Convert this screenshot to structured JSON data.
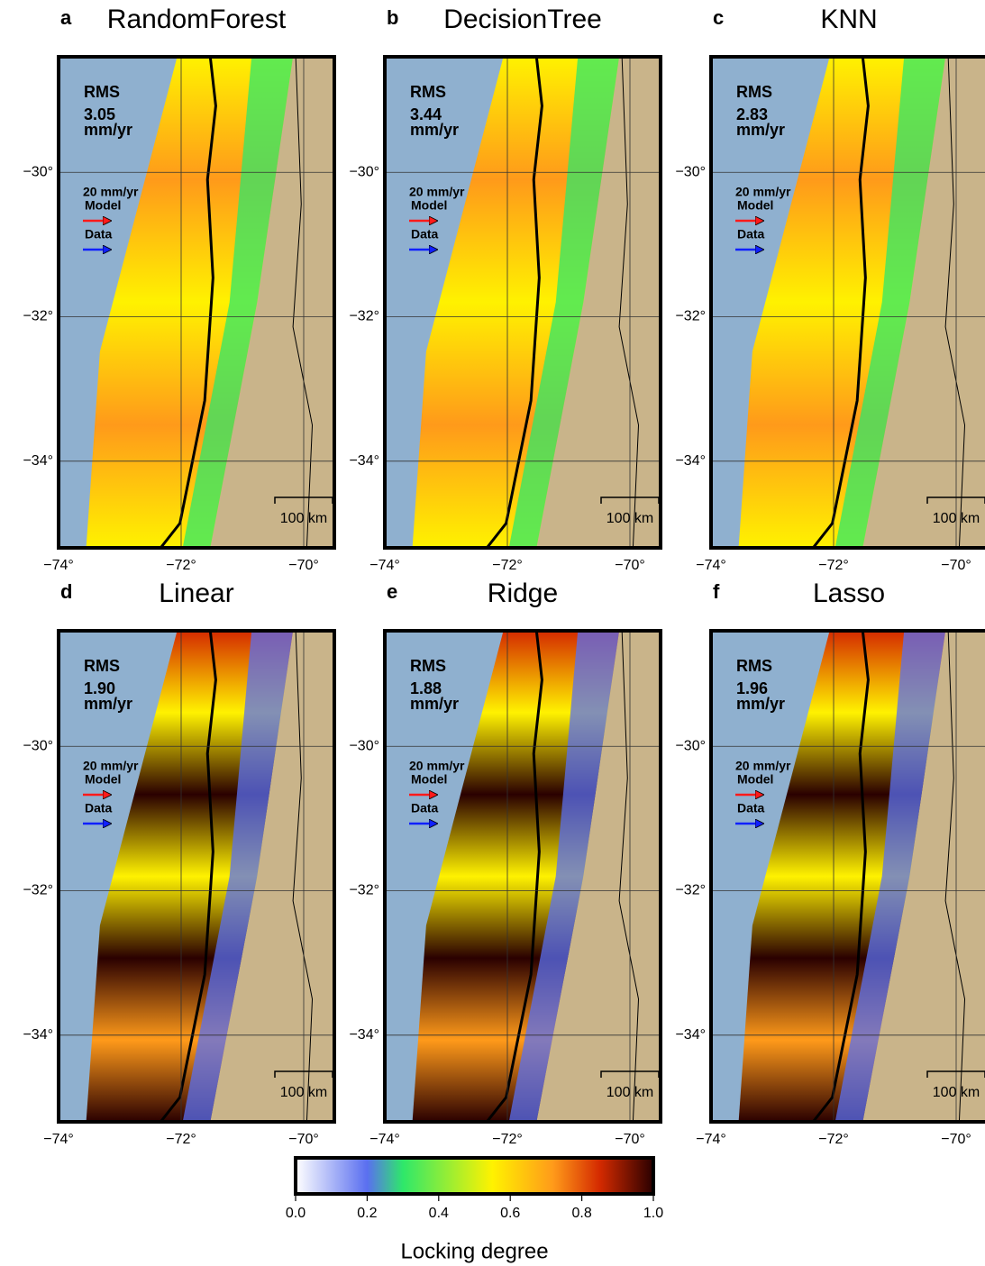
{
  "chart_data": [
    {
      "type": "map",
      "letter": "a",
      "title": "RandomForest",
      "rms_label": "RMS",
      "rms": 3.05,
      "rms_unit": "mm/yr",
      "legend_scale": "20 mm/yr",
      "legend_model": "Model",
      "legend_data": "Data",
      "scalebar": "100 km",
      "xlim": [
        -74,
        -69.5
      ],
      "ylim": [
        -35.2,
        -28.4
      ],
      "xticks": [
        {
          "value": -74,
          "label": "−74°"
        },
        {
          "value": -72,
          "label": "−72°"
        },
        {
          "value": -70,
          "label": "−70°"
        }
      ],
      "yticks": [
        {
          "value": -30,
          "label": "−30°"
        },
        {
          "value": -32,
          "label": "−32°"
        },
        {
          "value": -34,
          "label": "−34°"
        }
      ]
    },
    {
      "type": "map",
      "letter": "b",
      "title": "DecisionTree",
      "rms_label": "RMS",
      "rms": 3.44,
      "rms_unit": "mm/yr",
      "legend_scale": "20 mm/yr",
      "legend_model": "Model",
      "legend_data": "Data",
      "scalebar": "100 km",
      "xlim": [
        -74,
        -69.5
      ],
      "ylim": [
        -35.2,
        -28.4
      ],
      "xticks": [
        {
          "value": -74,
          "label": "−74°"
        },
        {
          "value": -72,
          "label": "−72°"
        },
        {
          "value": -70,
          "label": "−70°"
        }
      ],
      "yticks": [
        {
          "value": -30,
          "label": "−30°"
        },
        {
          "value": -32,
          "label": "−32°"
        },
        {
          "value": -34,
          "label": "−34°"
        }
      ]
    },
    {
      "type": "map",
      "letter": "c",
      "title": "KNN",
      "rms_label": "RMS",
      "rms": 2.83,
      "rms_unit": "mm/yr",
      "legend_scale": "20 mm/yr",
      "legend_model": "Model",
      "legend_data": "Data",
      "scalebar": "100 km",
      "xlim": [
        -74,
        -69.5
      ],
      "ylim": [
        -35.2,
        -28.4
      ],
      "xticks": [
        {
          "value": -74,
          "label": "−74°"
        },
        {
          "value": -72,
          "label": "−72°"
        },
        {
          "value": -70,
          "label": "−70°"
        }
      ],
      "yticks": [
        {
          "value": -30,
          "label": "−30°"
        },
        {
          "value": -32,
          "label": "−32°"
        },
        {
          "value": -34,
          "label": "−34°"
        }
      ]
    },
    {
      "type": "map",
      "letter": "d",
      "title": "Linear",
      "rms_label": "RMS",
      "rms": {
        "value": 1.9,
        "label": "1.90"
      },
      "rms_unit": "mm/yr",
      "legend_scale": "20 mm/yr",
      "legend_model": "Model",
      "legend_data": "Data",
      "scalebar": "100 km",
      "xlim": [
        -74,
        -69.5
      ],
      "ylim": [
        -35.2,
        -28.4
      ],
      "xticks": [
        {
          "value": -74,
          "label": "−74°"
        },
        {
          "value": -72,
          "label": "−72°"
        },
        {
          "value": -70,
          "label": "−70°"
        }
      ],
      "yticks": [
        {
          "value": -30,
          "label": "−30°"
        },
        {
          "value": -32,
          "label": "−32°"
        },
        {
          "value": -34,
          "label": "−34°"
        }
      ]
    },
    {
      "type": "map",
      "letter": "e",
      "title": "Ridge",
      "rms_label": "RMS",
      "rms": 1.88,
      "rms_unit": "mm/yr",
      "legend_scale": "20 mm/yr",
      "legend_model": "Model",
      "legend_data": "Data",
      "scalebar": "100 km",
      "xlim": [
        -74,
        -69.5
      ],
      "ylim": [
        -35.2,
        -28.4
      ],
      "xticks": [
        {
          "value": -74,
          "label": "−74°"
        },
        {
          "value": -72,
          "label": "−72°"
        },
        {
          "value": -70,
          "label": "−70°"
        }
      ],
      "yticks": [
        {
          "value": -30,
          "label": "−30°"
        },
        {
          "value": -32,
          "label": "−32°"
        },
        {
          "value": -34,
          "label": "−34°"
        }
      ]
    },
    {
      "type": "map",
      "letter": "f",
      "title": "Lasso",
      "rms_label": "RMS",
      "rms": 1.96,
      "rms_unit": "mm/yr",
      "legend_scale": "20 mm/yr",
      "legend_model": "Model",
      "legend_data": "Data",
      "scalebar": "100 km",
      "xlim": [
        -74,
        -69.5
      ],
      "ylim": [
        -35.2,
        -28.4
      ],
      "xticks": [
        {
          "value": -74,
          "label": "−74°"
        },
        {
          "value": -72,
          "label": "−72°"
        },
        {
          "value": -70,
          "label": "−70°"
        }
      ],
      "yticks": [
        {
          "value": -30,
          "label": "−30°"
        },
        {
          "value": -32,
          "label": "−32°"
        },
        {
          "value": -34,
          "label": "−34°"
        }
      ]
    }
  ],
  "colorbar": {
    "label": "Locking degree",
    "xlim": [
      0,
      1
    ],
    "xticks": [
      {
        "value": 0,
        "label": "0.0"
      },
      0.2,
      0.4,
      0.6,
      0.8,
      {
        "value": 1,
        "label": "1.0"
      }
    ],
    "colormap": [
      {
        "value": 0,
        "color": "#ffffff"
      },
      {
        "value": 0.2,
        "color": "#5a6ff0"
      },
      {
        "value": 0.3,
        "color": "#2ee86a"
      },
      {
        "value": 0.55,
        "color": "#fff200"
      },
      {
        "value": 0.72,
        "color": "#ff9a1a"
      },
      {
        "value": 0.85,
        "color": "#d42a00"
      },
      {
        "value": 1,
        "color": "#2a0000"
      }
    ]
  }
}
